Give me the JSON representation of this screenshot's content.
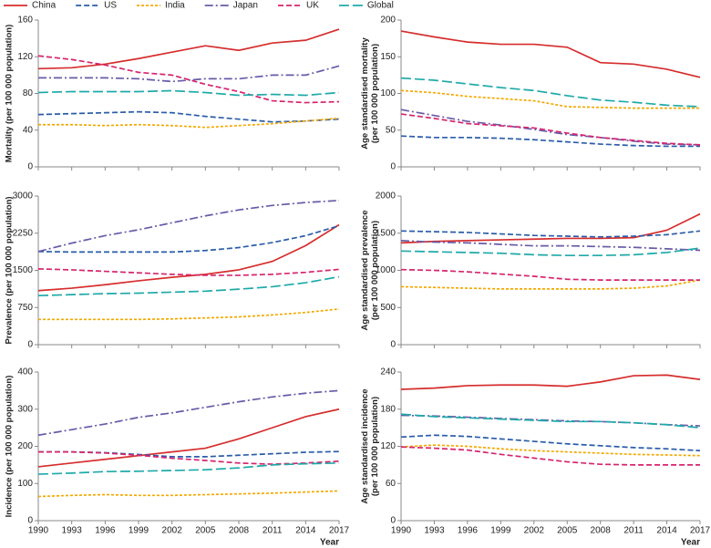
{
  "chart_data": [
    {
      "type": "line",
      "ylabel": [
        "Mortality (per 100 000 population)"
      ],
      "x": [
        1990,
        1993,
        1996,
        1999,
        2002,
        2005,
        2008,
        2011,
        2014,
        2017
      ],
      "xlim": [
        1990,
        2017
      ],
      "xticks": [
        1990,
        1993,
        1996,
        1999,
        2002,
        2005,
        2008,
        2011,
        2014,
        2017
      ],
      "ylim": [
        0,
        160
      ],
      "yticks": [
        0,
        40,
        80,
        120,
        160
      ],
      "series": [
        {
          "name": "China",
          "color": "#d62d2d",
          "dash": "none",
          "values": [
            107,
            108,
            112,
            118,
            125,
            132,
            127,
            135,
            138,
            150
          ]
        },
        {
          "name": "US",
          "color": "#2a5caa",
          "dash": "6,3",
          "values": [
            57,
            58,
            59,
            60,
            59,
            55,
            52,
            49,
            50,
            52
          ]
        },
        {
          "name": "India",
          "color": "#f2a900",
          "dash": "3,2",
          "values": [
            46,
            46,
            45,
            46,
            45,
            43,
            45,
            47,
            50,
            53
          ]
        },
        {
          "name": "Japan",
          "color": "#6a5aa8",
          "dash": "9,3,2,3",
          "values": [
            97,
            97,
            97,
            96,
            93,
            96,
            96,
            100,
            100,
            110
          ]
        },
        {
          "name": "UK",
          "color": "#d6246e",
          "dash": "6,3",
          "values": [
            121,
            117,
            111,
            103,
            100,
            90,
            82,
            72,
            70,
            71
          ]
        },
        {
          "name": "Global",
          "color": "#1fa9a9",
          "dash": "11,4",
          "values": [
            81,
            82,
            82,
            82,
            83,
            81,
            78,
            79,
            78,
            81
          ]
        }
      ]
    },
    {
      "type": "line",
      "ylabel": [
        "Age standardised mortality",
        "(per 100 000 population)"
      ],
      "x": [
        1990,
        1993,
        1996,
        1999,
        2002,
        2005,
        2008,
        2011,
        2014,
        2017
      ],
      "xlim": [
        1990,
        2017
      ],
      "xticks": [
        1990,
        1993,
        1996,
        1999,
        2002,
        2005,
        2008,
        2011,
        2014,
        2017
      ],
      "ylim": [
        0,
        200
      ],
      "yticks": [
        0,
        50,
        100,
        150,
        200
      ],
      "series": [
        {
          "name": "China",
          "color": "#d62d2d",
          "dash": "none",
          "values": [
            185,
            177,
            170,
            167,
            167,
            163,
            142,
            140,
            133,
            122
          ]
        },
        {
          "name": "US",
          "color": "#2a5caa",
          "dash": "6,3",
          "values": [
            42,
            40,
            40,
            39,
            37,
            34,
            31,
            29,
            28,
            28
          ]
        },
        {
          "name": "India",
          "color": "#f2a900",
          "dash": "3,2",
          "values": [
            104,
            101,
            96,
            93,
            90,
            82,
            81,
            80,
            80,
            80
          ]
        },
        {
          "name": "Japan",
          "color": "#6a5aa8",
          "dash": "9,3,2,3",
          "values": [
            78,
            70,
            62,
            57,
            51,
            44,
            40,
            35,
            31,
            30
          ]
        },
        {
          "name": "UK",
          "color": "#d6246e",
          "dash": "6,3",
          "values": [
            72,
            66,
            59,
            56,
            53,
            46,
            40,
            36,
            32,
            30
          ]
        },
        {
          "name": "Global",
          "color": "#1fa9a9",
          "dash": "11,4",
          "values": [
            121,
            118,
            113,
            108,
            104,
            97,
            91,
            88,
            84,
            82
          ]
        }
      ]
    },
    {
      "type": "line",
      "ylabel": [
        "Prevalence (per 100 000 population)"
      ],
      "x": [
        1990,
        1993,
        1996,
        1999,
        2002,
        2005,
        2008,
        2011,
        2014,
        2017
      ],
      "xlim": [
        1990,
        2017
      ],
      "xticks": [
        1990,
        1993,
        1996,
        1999,
        2002,
        2005,
        2008,
        2011,
        2014,
        2017
      ],
      "ylim": [
        0,
        3000
      ],
      "yticks": [
        0,
        750,
        1500,
        2250,
        3000
      ],
      "series": [
        {
          "name": "China",
          "color": "#d62d2d",
          "dash": "none",
          "values": [
            1090,
            1140,
            1210,
            1290,
            1360,
            1420,
            1510,
            1680,
            2000,
            2420
          ]
        },
        {
          "name": "US",
          "color": "#2a5caa",
          "dash": "6,3",
          "values": [
            1880,
            1870,
            1870,
            1870,
            1870,
            1900,
            1960,
            2060,
            2200,
            2400
          ]
        },
        {
          "name": "India",
          "color": "#f2a900",
          "dash": "3,2",
          "values": [
            510,
            510,
            510,
            510,
            520,
            540,
            560,
            600,
            650,
            720
          ]
        },
        {
          "name": "Japan",
          "color": "#6a5aa8",
          "dash": "9,3,2,3",
          "values": [
            1880,
            2050,
            2200,
            2320,
            2460,
            2600,
            2720,
            2810,
            2870,
            2910
          ]
        },
        {
          "name": "UK",
          "color": "#d6246e",
          "dash": "6,3",
          "values": [
            1530,
            1510,
            1480,
            1450,
            1420,
            1400,
            1400,
            1420,
            1460,
            1520
          ]
        },
        {
          "name": "Global",
          "color": "#1fa9a9",
          "dash": "11,4",
          "values": [
            990,
            1010,
            1030,
            1040,
            1060,
            1080,
            1120,
            1170,
            1250,
            1370
          ]
        }
      ]
    },
    {
      "type": "line",
      "ylabel": [
        "Age standardised prevalence",
        "(per 100 000 population)"
      ],
      "x": [
        1990,
        1993,
        1996,
        1999,
        2002,
        2005,
        2008,
        2011,
        2014,
        2017
      ],
      "xlim": [
        1990,
        2017
      ],
      "xticks": [
        1990,
        1993,
        1996,
        1999,
        2002,
        2005,
        2008,
        2011,
        2014,
        2017
      ],
      "ylim": [
        0,
        2000
      ],
      "yticks": [
        0,
        500,
        1000,
        1500,
        2000
      ],
      "series": [
        {
          "name": "China",
          "color": "#d62d2d",
          "dash": "none",
          "values": [
            1370,
            1390,
            1400,
            1410,
            1420,
            1430,
            1430,
            1440,
            1540,
            1760
          ]
        },
        {
          "name": "US",
          "color": "#2a5caa",
          "dash": "6,3",
          "values": [
            1530,
            1520,
            1510,
            1490,
            1470,
            1460,
            1450,
            1460,
            1480,
            1530
          ]
        },
        {
          "name": "India",
          "color": "#f2a900",
          "dash": "3,2",
          "values": [
            780,
            770,
            760,
            750,
            750,
            750,
            750,
            760,
            790,
            870
          ]
        },
        {
          "name": "Japan",
          "color": "#6a5aa8",
          "dash": "9,3,2,3",
          "values": [
            1400,
            1380,
            1370,
            1350,
            1330,
            1330,
            1320,
            1310,
            1290,
            1270
          ]
        },
        {
          "name": "UK",
          "color": "#d6246e",
          "dash": "6,3",
          "values": [
            1010,
            1000,
            980,
            950,
            920,
            880,
            870,
            870,
            870,
            870
          ]
        },
        {
          "name": "Global",
          "color": "#1fa9a9",
          "dash": "11,4",
          "values": [
            1260,
            1250,
            1240,
            1230,
            1210,
            1200,
            1200,
            1210,
            1240,
            1300
          ]
        }
      ]
    },
    {
      "type": "line",
      "ylabel": [
        "Incidence (per 100 000 population)"
      ],
      "xlabel": "Year",
      "x": [
        1990,
        1993,
        1996,
        1999,
        2002,
        2005,
        2008,
        2011,
        2014,
        2017
      ],
      "xlim": [
        1990,
        2017
      ],
      "xticks": [
        1990,
        1993,
        1996,
        1999,
        2002,
        2005,
        2008,
        2011,
        2014,
        2017
      ],
      "ylim": [
        0,
        400
      ],
      "yticks": [
        0,
        100,
        200,
        300,
        400
      ],
      "series": [
        {
          "name": "China",
          "color": "#d62d2d",
          "dash": "none",
          "values": [
            145,
            155,
            165,
            175,
            185,
            195,
            220,
            250,
            280,
            300
          ]
        },
        {
          "name": "US",
          "color": "#2a5caa",
          "dash": "6,3",
          "values": [
            185,
            185,
            183,
            178,
            172,
            172,
            176,
            180,
            184,
            186
          ]
        },
        {
          "name": "India",
          "color": "#f2a900",
          "dash": "3,2",
          "values": [
            65,
            68,
            70,
            68,
            68,
            70,
            72,
            74,
            77,
            80
          ]
        },
        {
          "name": "Japan",
          "color": "#6a5aa8",
          "dash": "9,3,2,3",
          "values": [
            230,
            245,
            260,
            278,
            290,
            305,
            320,
            333,
            343,
            350
          ]
        },
        {
          "name": "UK",
          "color": "#d6246e",
          "dash": "6,3",
          "values": [
            185,
            185,
            182,
            176,
            168,
            162,
            155,
            152,
            155,
            160
          ]
        },
        {
          "name": "Global",
          "color": "#1fa9a9",
          "dash": "11,4",
          "values": [
            125,
            128,
            132,
            133,
            135,
            137,
            142,
            150,
            153,
            155
          ]
        }
      ]
    },
    {
      "type": "line",
      "ylabel": [
        "Age standardised incidence",
        "(per 100 000 population)"
      ],
      "xlabel": "Year",
      "x": [
        1990,
        1993,
        1996,
        1999,
        2002,
        2005,
        2008,
        2011,
        2014,
        2017
      ],
      "xlim": [
        1990,
        2017
      ],
      "xticks": [
        1990,
        1993,
        1996,
        1999,
        2002,
        2005,
        2008,
        2011,
        2014,
        2017
      ],
      "ylim": [
        0,
        240
      ],
      "yticks": [
        0,
        60,
        120,
        180,
        240
      ],
      "series": [
        {
          "name": "China",
          "color": "#d62d2d",
          "dash": "none",
          "values": [
            212,
            214,
            218,
            219,
            219,
            217,
            224,
            234,
            235,
            228
          ]
        },
        {
          "name": "US",
          "color": "#2a5caa",
          "dash": "6,3",
          "values": [
            135,
            138,
            136,
            132,
            128,
            124,
            121,
            118,
            116,
            113
          ]
        },
        {
          "name": "India",
          "color": "#f2a900",
          "dash": "3,2",
          "values": [
            119,
            122,
            120,
            116,
            113,
            111,
            109,
            107,
            106,
            105
          ]
        },
        {
          "name": "Japan",
          "color": "#6a5aa8",
          "dash": "9,3,2,3",
          "values": [
            170,
            169,
            167,
            165,
            163,
            161,
            160,
            158,
            155,
            153
          ]
        },
        {
          "name": "UK",
          "color": "#d6246e",
          "dash": "6,3",
          "values": [
            119,
            117,
            114,
            107,
            101,
            95,
            91,
            90,
            90,
            90
          ]
        },
        {
          "name": "Global",
          "color": "#1fa9a9",
          "dash": "11,4",
          "values": [
            172,
            168,
            166,
            164,
            162,
            160,
            160,
            158,
            155,
            150
          ]
        }
      ]
    }
  ]
}
